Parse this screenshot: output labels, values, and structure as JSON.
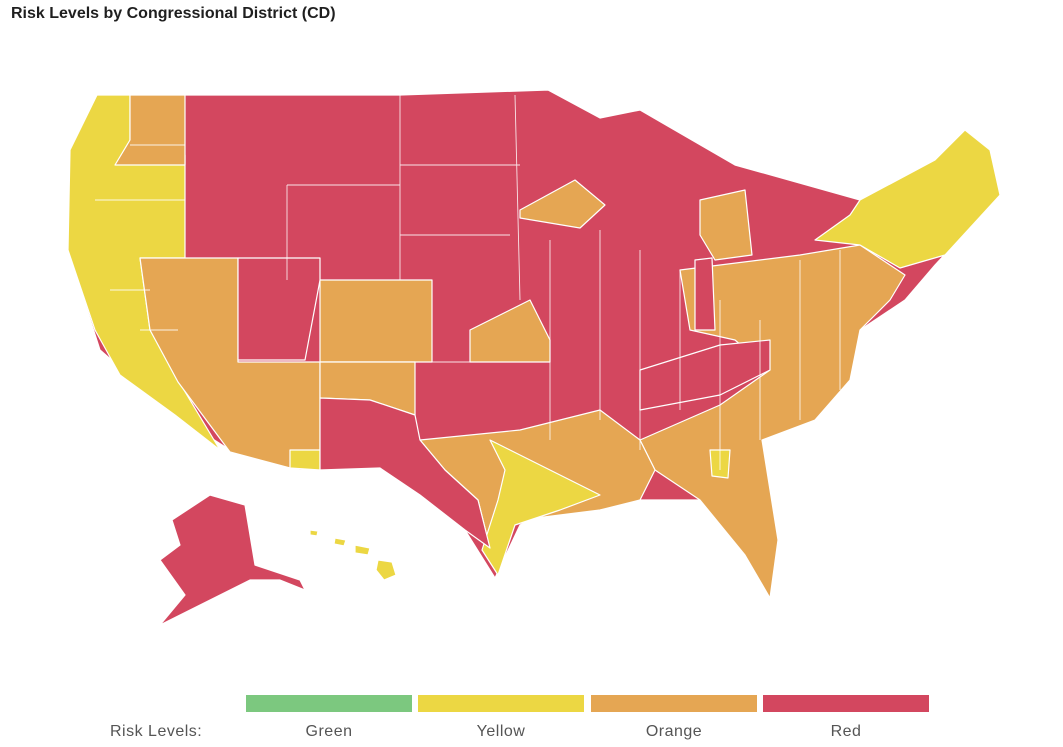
{
  "title": "Risk Levels by Congressional District (CD)",
  "legend": {
    "label": "Risk Levels:",
    "levels": [
      {
        "name": "Green",
        "color": "#7cc87f"
      },
      {
        "name": "Yellow",
        "color": "#ecd743"
      },
      {
        "name": "Orange",
        "color": "#e5a653"
      },
      {
        "name": "Red",
        "color": "#d3475f"
      }
    ]
  },
  "map": {
    "border_color": "#ffffff"
  }
}
